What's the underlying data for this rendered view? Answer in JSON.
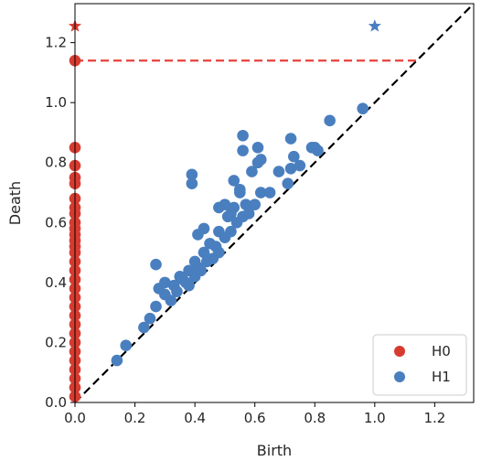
{
  "chart_data": {
    "type": "scatter",
    "title": "",
    "xlabel": "Birth",
    "ylabel": "Death",
    "xlim": [
      0.0,
      1.33
    ],
    "ylim": [
      0.0,
      1.33
    ],
    "xticks": [
      "0.0",
      "0.2",
      "0.4",
      "0.6",
      "0.8",
      "1.0",
      "1.2"
    ],
    "yticks": [
      "0.0",
      "0.2",
      "0.4",
      "0.6",
      "0.8",
      "1.0",
      "1.2"
    ],
    "diagonal": {
      "style": "dashed",
      "color": "#000000"
    },
    "infinity_line": {
      "y": 1.14,
      "x_end": 1.14,
      "style": "dashed",
      "color": "#e8403a"
    },
    "legend": {
      "position": "bottom-right",
      "entries": [
        "H0",
        "H1"
      ]
    },
    "series": [
      {
        "name": "H0",
        "color": "#d73b30",
        "points": [
          [
            0.0,
            0.02
          ],
          [
            0.0,
            0.05
          ],
          [
            0.0,
            0.08
          ],
          [
            0.0,
            0.11
          ],
          [
            0.0,
            0.14
          ],
          [
            0.0,
            0.17
          ],
          [
            0.0,
            0.2
          ],
          [
            0.0,
            0.23
          ],
          [
            0.0,
            0.26
          ],
          [
            0.0,
            0.29
          ],
          [
            0.0,
            0.32
          ],
          [
            0.0,
            0.35
          ],
          [
            0.0,
            0.38
          ],
          [
            0.0,
            0.41
          ],
          [
            0.0,
            0.44
          ],
          [
            0.0,
            0.47
          ],
          [
            0.0,
            0.5
          ],
          [
            0.0,
            0.52
          ],
          [
            0.0,
            0.54
          ],
          [
            0.0,
            0.56
          ],
          [
            0.0,
            0.58
          ],
          [
            0.0,
            0.6
          ],
          [
            0.0,
            0.63
          ],
          [
            0.0,
            0.65
          ],
          [
            0.0,
            0.68
          ],
          [
            0.0,
            0.73
          ],
          [
            0.0,
            0.75
          ],
          [
            0.0,
            0.79
          ],
          [
            0.0,
            0.85
          ],
          [
            0.0,
            1.14
          ]
        ],
        "infinite_points": [
          [
            0.0,
            1.255
          ]
        ]
      },
      {
        "name": "H1",
        "color": "#4a7fbf",
        "points": [
          [
            0.14,
            0.14
          ],
          [
            0.17,
            0.19
          ],
          [
            0.23,
            0.25
          ],
          [
            0.25,
            0.28
          ],
          [
            0.27,
            0.32
          ],
          [
            0.28,
            0.38
          ],
          [
            0.3,
            0.36
          ],
          [
            0.3,
            0.4
          ],
          [
            0.32,
            0.34
          ],
          [
            0.33,
            0.39
          ],
          [
            0.34,
            0.37
          ],
          [
            0.35,
            0.42
          ],
          [
            0.36,
            0.41
          ],
          [
            0.37,
            0.4
          ],
          [
            0.38,
            0.44
          ],
          [
            0.38,
            0.39
          ],
          [
            0.4,
            0.42
          ],
          [
            0.4,
            0.47
          ],
          [
            0.41,
            0.45
          ],
          [
            0.42,
            0.44
          ],
          [
            0.43,
            0.5
          ],
          [
            0.44,
            0.47
          ],
          [
            0.45,
            0.53
          ],
          [
            0.46,
            0.48
          ],
          [
            0.47,
            0.52
          ],
          [
            0.48,
            0.57
          ],
          [
            0.48,
            0.5
          ],
          [
            0.5,
            0.55
          ],
          [
            0.51,
            0.62
          ],
          [
            0.52,
            0.57
          ],
          [
            0.53,
            0.65
          ],
          [
            0.54,
            0.6
          ],
          [
            0.55,
            0.7
          ],
          [
            0.56,
            0.62
          ],
          [
            0.57,
            0.66
          ],
          [
            0.58,
            0.63
          ],
          [
            0.6,
            0.66
          ],
          [
            0.62,
            0.7
          ],
          [
            0.27,
            0.46
          ],
          [
            0.39,
            0.76
          ],
          [
            0.39,
            0.73
          ],
          [
            0.43,
            0.58
          ],
          [
            0.41,
            0.56
          ],
          [
            0.48,
            0.65
          ],
          [
            0.5,
            0.66
          ],
          [
            0.52,
            0.63
          ],
          [
            0.53,
            0.74
          ],
          [
            0.55,
            0.71
          ],
          [
            0.56,
            0.89
          ],
          [
            0.56,
            0.84
          ],
          [
            0.59,
            0.77
          ],
          [
            0.61,
            0.8
          ],
          [
            0.61,
            0.85
          ],
          [
            0.62,
            0.81
          ],
          [
            0.68,
            0.77
          ],
          [
            0.71,
            0.73
          ],
          [
            0.72,
            0.88
          ],
          [
            0.72,
            0.78
          ],
          [
            0.73,
            0.82
          ],
          [
            0.75,
            0.79
          ],
          [
            0.79,
            0.85
          ],
          [
            0.81,
            0.84
          ],
          [
            0.85,
            0.94
          ],
          [
            0.96,
            0.98
          ],
          [
            0.8,
            0.85
          ],
          [
            0.65,
            0.7
          ]
        ],
        "infinite_points": [
          [
            1.0,
            1.255
          ]
        ]
      }
    ]
  }
}
